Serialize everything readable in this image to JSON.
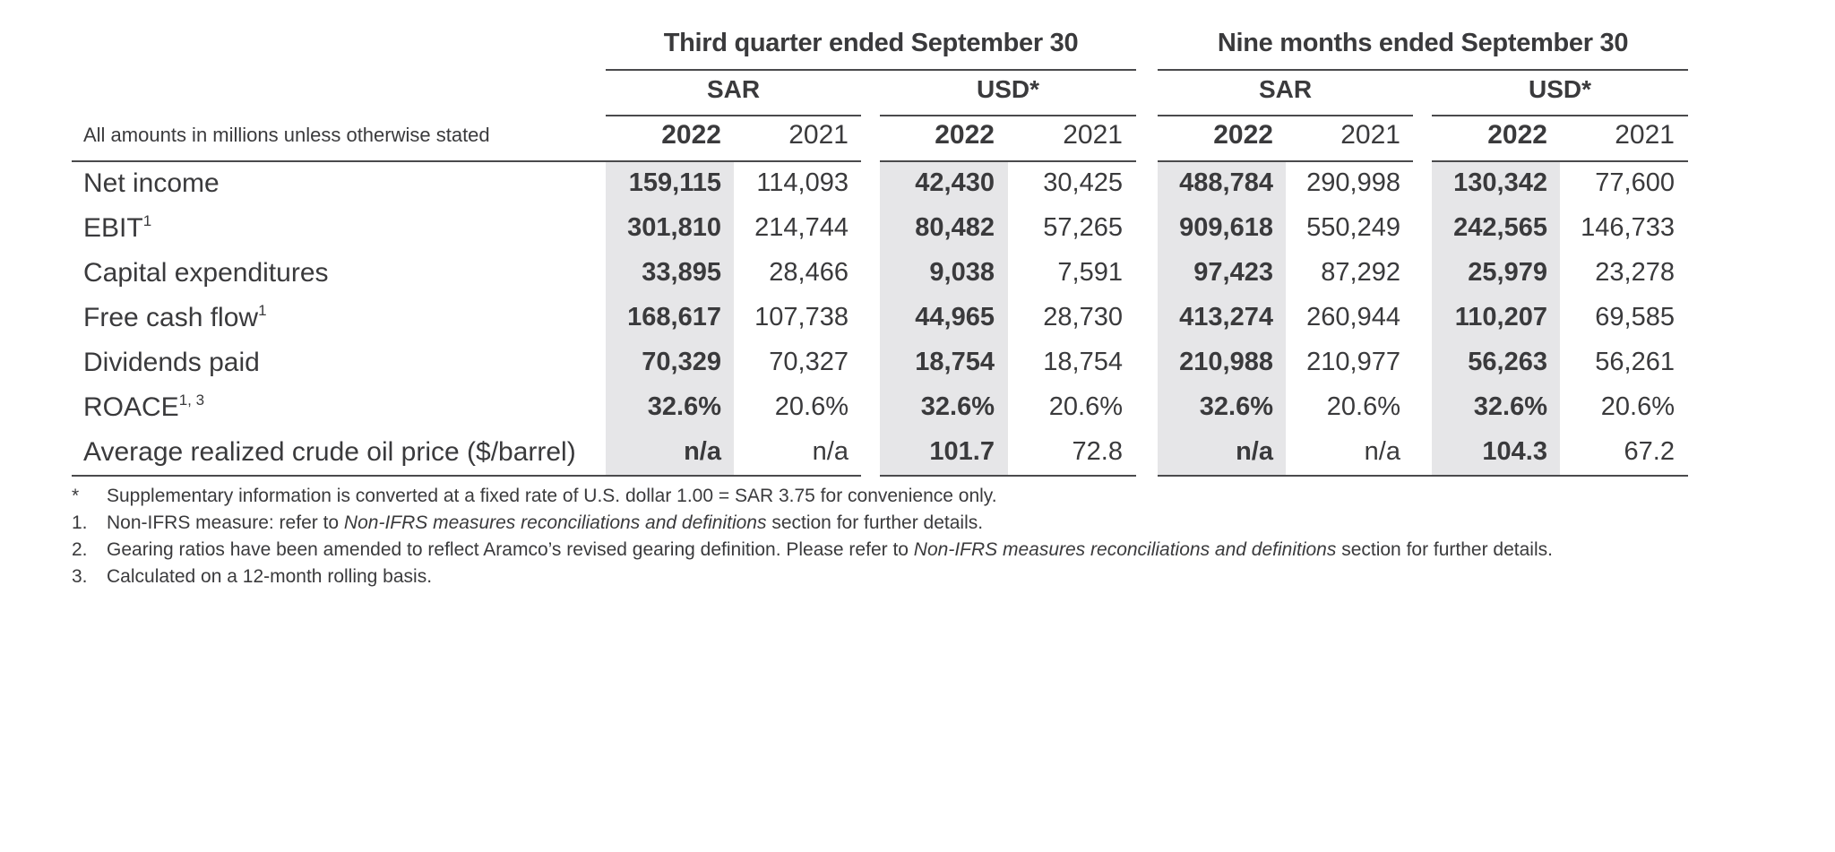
{
  "header": {
    "group1_title": "Third quarter ended September 30",
    "group2_title": "Nine months ended September 30",
    "currencies": [
      "SAR",
      "USD*",
      "SAR",
      "USD*"
    ],
    "years": [
      "2022",
      "2021",
      "2022",
      "2021",
      "2022",
      "2021",
      "2022",
      "2021"
    ],
    "amounts_note": "All amounts in millions unless otherwise stated"
  },
  "rows": [
    {
      "label": "Net income",
      "sup": "",
      "values": [
        "159,115",
        "114,093",
        "42,430",
        "30,425",
        "488,784",
        "290,998",
        "130,342",
        "77,600"
      ]
    },
    {
      "label": "EBIT",
      "sup": "1",
      "values": [
        "301,810",
        "214,744",
        "80,482",
        "57,265",
        "909,618",
        "550,249",
        "242,565",
        "146,733"
      ]
    },
    {
      "label": "Capital expenditures",
      "sup": "",
      "values": [
        "33,895",
        "28,466",
        "9,038",
        "7,591",
        "97,423",
        "87,292",
        "25,979",
        "23,278"
      ]
    },
    {
      "label": "Free cash flow",
      "sup": "1",
      "values": [
        "168,617",
        "107,738",
        "44,965",
        "28,730",
        "413,274",
        "260,944",
        "110,207",
        "69,585"
      ]
    },
    {
      "label": "Dividends paid",
      "sup": "",
      "values": [
        "70,329",
        "70,327",
        "18,754",
        "18,754",
        "210,988",
        "210,977",
        "56,263",
        "56,261"
      ]
    },
    {
      "label": "ROACE",
      "sup": "1, 3",
      "values": [
        "32.6%",
        "20.6%",
        "32.6%",
        "20.6%",
        "32.6%",
        "20.6%",
        "32.6%",
        "20.6%"
      ]
    },
    {
      "label": "Average realized crude oil price ($/barrel)",
      "sup": "",
      "values": [
        "n/a",
        "n/a",
        "101.7",
        "72.8",
        "n/a",
        "n/a",
        "104.3",
        "67.2"
      ]
    }
  ],
  "footnotes": [
    {
      "mark": "*",
      "pre": "Supplementary information is converted at a fixed rate of U.S. dollar 1.00 = SAR 3.75 for convenience only.",
      "italic": "",
      "post": ""
    },
    {
      "mark": "1.",
      "pre": "Non-IFRS measure: refer to ",
      "italic": "Non-IFRS measures reconciliations and definitions",
      "post": " section for further details."
    },
    {
      "mark": "2.",
      "pre": "Gearing ratios have been amended to reflect Aramco’s revised gearing definition. Please refer to ",
      "italic": "Non-IFRS measures reconciliations and definitions",
      "post": " section for further details."
    },
    {
      "mark": "3.",
      "pre": "Calculated on a 12-month rolling basis.",
      "italic": "",
      "post": ""
    }
  ]
}
